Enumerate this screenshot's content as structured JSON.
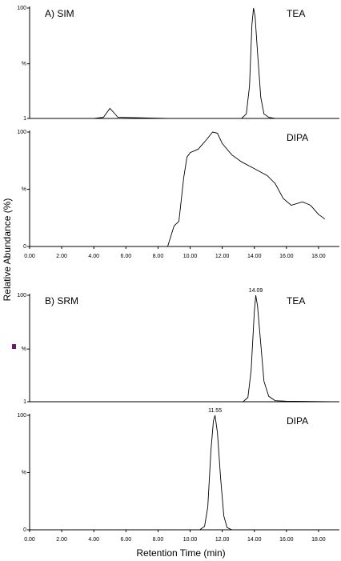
{
  "figure": {
    "y_label": "Relative Abundance (%)",
    "x_label": "Retention Time (min)"
  },
  "chart_data": [
    {
      "type": "line",
      "panel_label": "A) SIM",
      "title": "TEA",
      "xlim": [
        0,
        19.3
      ],
      "ylim": [
        1,
        100
      ],
      "yticks": [
        1,
        {
          "value": 50,
          "label": "%"
        },
        100
      ],
      "x": [
        4.0,
        4.6,
        4.8,
        5.0,
        5.2,
        5.5,
        8.6,
        10.9,
        13.2,
        13.5,
        13.7,
        13.85,
        13.95,
        14.05,
        14.2,
        14.4,
        14.6,
        14.9,
        15.3
      ],
      "series": [
        {
          "name": "TEA",
          "color": "#000000",
          "values": [
            1,
            2,
            6,
            10,
            7,
            2,
            1,
            null,
            1,
            5,
            30,
            85,
            100,
            92,
            60,
            20,
            5,
            2,
            1
          ]
        }
      ]
    },
    {
      "type": "line",
      "title": "DIPA",
      "xlim": [
        0,
        19.3
      ],
      "ylim": [
        0,
        100
      ],
      "yticks": [
        0,
        {
          "value": 50,
          "label": "%"
        },
        100
      ],
      "xticks": [
        {
          "value": 0,
          "label": "0.00"
        },
        {
          "value": 2,
          "label": "2.00"
        },
        {
          "value": 4,
          "label": "4.00"
        },
        {
          "value": 6,
          "label": "6.00"
        },
        {
          "value": 8,
          "label": "8.00"
        },
        {
          "value": 10,
          "label": "10.00"
        },
        {
          "value": 12,
          "label": "12.00"
        },
        {
          "value": 14,
          "label": "14.00"
        },
        {
          "value": 16,
          "label": "16.00"
        },
        {
          "value": 18,
          "label": "18.00"
        }
      ],
      "x": [
        8.6,
        9.0,
        9.3,
        9.6,
        9.8,
        10.0,
        10.5,
        11.0,
        11.4,
        11.7,
        12.0,
        12.6,
        13.2,
        14.0,
        14.8,
        15.3,
        15.8,
        16.3,
        17.0,
        17.5,
        18.0,
        18.4
      ],
      "series": [
        {
          "name": "DIPA",
          "color": "#000000",
          "values": [
            0,
            18,
            22,
            60,
            78,
            82,
            85,
            93,
            100,
            99,
            90,
            80,
            74,
            68,
            62,
            55,
            42,
            36,
            39,
            36,
            28,
            24
          ]
        }
      ]
    },
    {
      "type": "line",
      "panel_label": "B) SRM",
      "title": "TEA",
      "xlim": [
        0,
        19.3
      ],
      "ylim": [
        1,
        100
      ],
      "yticks": [
        1,
        {
          "value": 50,
          "label": "%"
        },
        100
      ],
      "annotations": [
        {
          "text": "14.09",
          "x": 14.09,
          "y": 100
        }
      ],
      "x": [
        13.0,
        13.3,
        13.6,
        13.8,
        14.0,
        14.09,
        14.2,
        14.4,
        14.6,
        14.9,
        15.3,
        16.0,
        18.8
      ],
      "series": [
        {
          "name": "TEA",
          "color": "#000000",
          "values": [
            1,
            1,
            5,
            30,
            85,
            100,
            90,
            55,
            20,
            6,
            2,
            1.5,
            1
          ]
        }
      ]
    },
    {
      "type": "line",
      "title": "DIPA",
      "xlim": [
        0,
        19.3
      ],
      "ylim": [
        0,
        100
      ],
      "yticks": [
        0,
        {
          "value": 50,
          "label": "%"
        },
        100
      ],
      "xticks": [
        {
          "value": 0,
          "label": "0.00"
        },
        {
          "value": 2,
          "label": "2.00"
        },
        {
          "value": 4,
          "label": "4.00"
        },
        {
          "value": 6,
          "label": "6.00"
        },
        {
          "value": 8,
          "label": "8.00"
        },
        {
          "value": 10,
          "label": "10.00"
        },
        {
          "value": 12,
          "label": "12.00"
        },
        {
          "value": 14,
          "label": "14.00"
        },
        {
          "value": 16,
          "label": "16.00"
        },
        {
          "value": 18,
          "label": "18.00"
        }
      ],
      "annotations": [
        {
          "text": "11.55",
          "x": 11.55,
          "y": 100
        }
      ],
      "x": [
        10.6,
        10.9,
        11.1,
        11.3,
        11.45,
        11.55,
        11.7,
        11.9,
        12.1,
        12.3,
        12.6,
        17.5
      ],
      "series": [
        {
          "name": "DIPA",
          "color": "#000000",
          "values": [
            0,
            3,
            20,
            70,
            95,
            100,
            85,
            45,
            12,
            2,
            0,
            0
          ]
        }
      ]
    }
  ]
}
